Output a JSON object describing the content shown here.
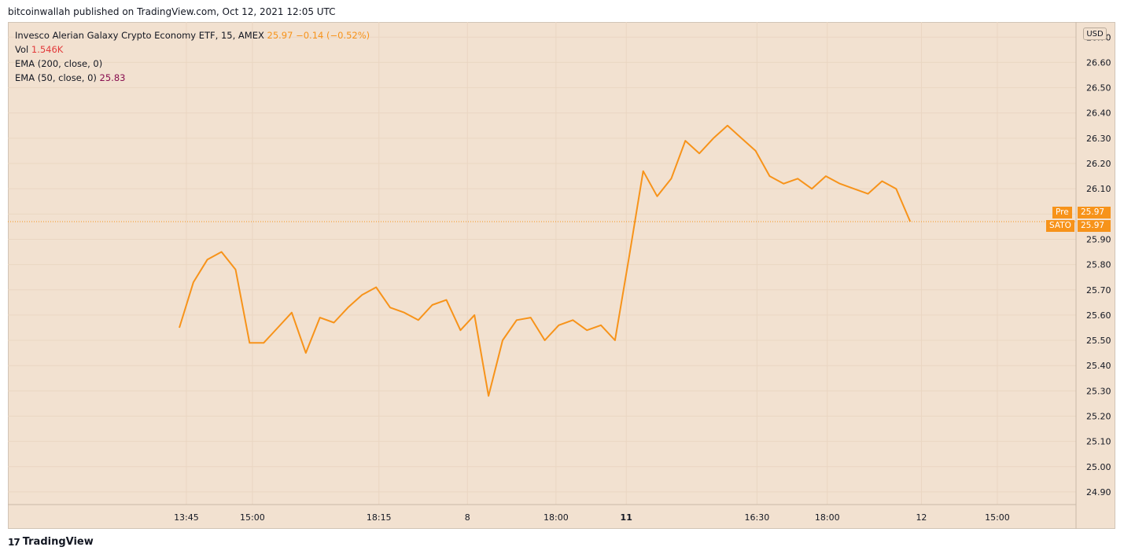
{
  "publisher": "bitcoinwallah published on TradingView.com, Oct 12, 2021 12:05 UTC",
  "legend": {
    "symbol": "Invesco Alerian Galaxy Crypto Economy ETF, 15, AMEX",
    "price": "25.97",
    "change": "−0.14 (−0.52%)",
    "vol_label": "Vol",
    "vol_value": "1.546K",
    "ema200": "EMA (200, close, 0)",
    "ema50": "EMA (50, close, 0)",
    "ema50_value": "25.83"
  },
  "currency": "USD",
  "price_tags": {
    "pre_label": "Pre",
    "pre_value": "25.97",
    "sato_label": "SATO",
    "sato_value": "25.97"
  },
  "brand": "TradingView",
  "colors": {
    "line": "#f7931a",
    "background": "#f2e1d0",
    "grid": "#ead6c2"
  },
  "chart_data": {
    "type": "line",
    "ylim": [
      24.85,
      26.76
    ],
    "yticks": [
      "26.70",
      "26.60",
      "26.50",
      "26.40",
      "26.30",
      "26.20",
      "26.10",
      "26.00",
      "25.90",
      "25.80",
      "25.70",
      "25.60",
      "25.50",
      "25.40",
      "25.30",
      "25.20",
      "25.10",
      "25.00",
      "24.90"
    ],
    "xticks": [
      {
        "label": "13:45",
        "index": 0.5,
        "bold": false
      },
      {
        "label": "15:00",
        "index": 5.2,
        "bold": false
      },
      {
        "label": "18:15",
        "index": 14.2,
        "bold": false
      },
      {
        "label": "8",
        "index": 20.5,
        "bold": false
      },
      {
        "label": "18:00",
        "index": 26.8,
        "bold": false
      },
      {
        "label": "11",
        "index": 31.8,
        "bold": true
      },
      {
        "label": "16:30",
        "index": 41.1,
        "bold": false
      },
      {
        "label": "18:00",
        "index": 46.1,
        "bold": false
      },
      {
        "label": "12",
        "index": 52.8,
        "bold": false
      },
      {
        "label": "15:00",
        "index": 58.2,
        "bold": false
      }
    ],
    "x_range": [
      -12.2,
      63.8
    ],
    "series": [
      {
        "values": [
          25.55,
          25.73,
          25.82,
          25.85,
          25.78,
          25.49,
          25.49,
          25.55,
          25.61,
          25.45,
          25.59,
          25.57,
          25.63,
          25.68,
          25.71,
          25.63,
          25.61,
          25.58,
          25.64,
          25.66,
          25.54,
          25.6,
          25.28,
          25.5,
          25.58,
          25.59,
          25.5,
          25.56,
          25.58,
          25.54,
          25.56,
          25.5,
          25.83,
          26.17,
          26.07,
          26.14,
          26.29,
          26.24,
          26.3,
          26.35,
          26.3,
          26.25,
          26.15,
          26.12,
          26.14,
          26.1,
          26.15,
          26.12,
          26.1,
          26.08,
          26.13,
          26.1,
          25.97
        ]
      }
    ],
    "last_value": 25.97
  }
}
